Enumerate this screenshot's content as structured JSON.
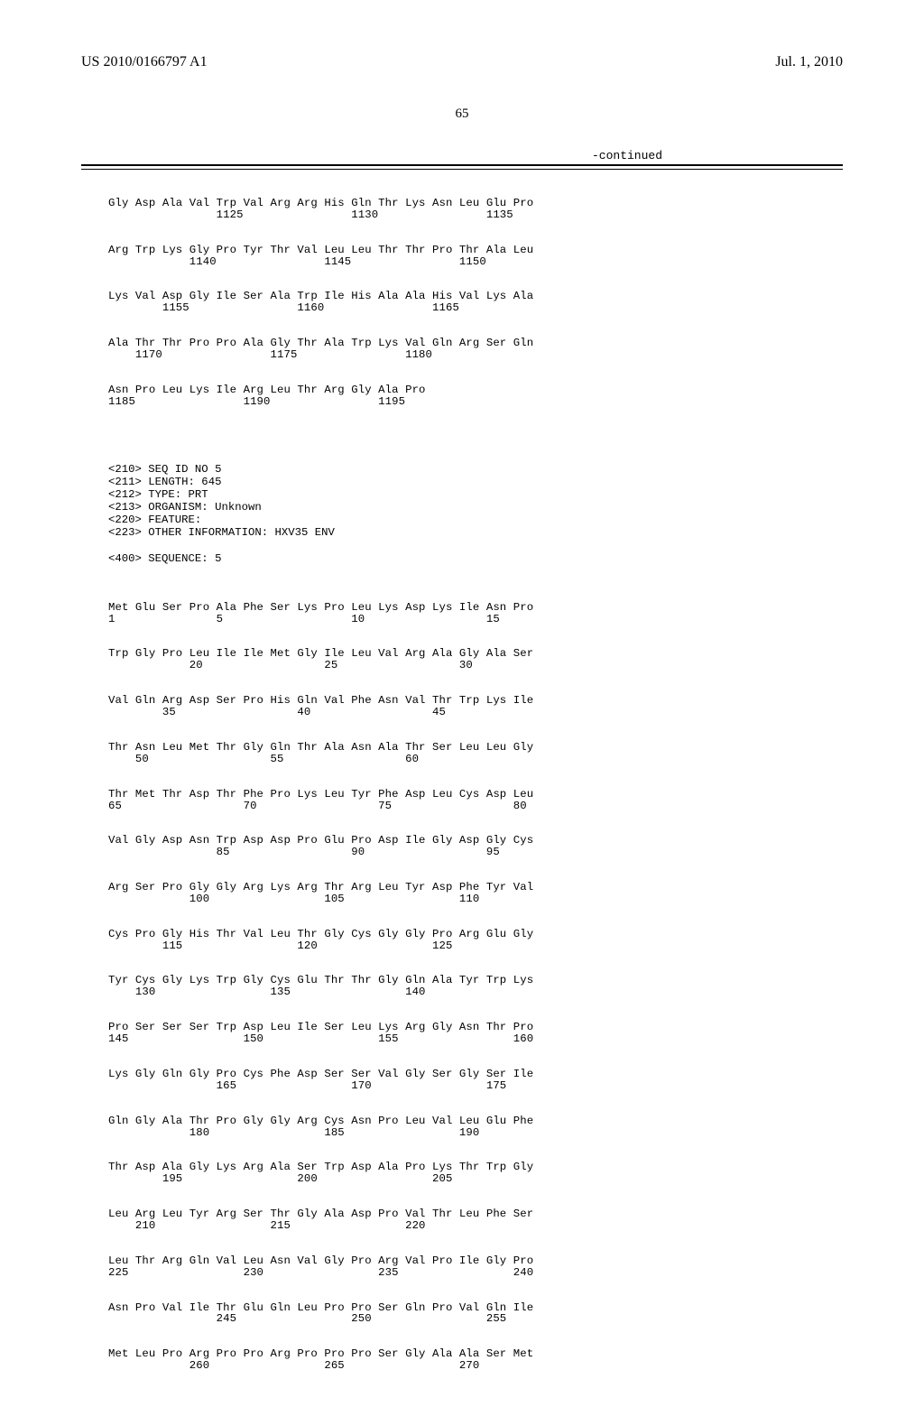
{
  "header": {
    "pub_number": "US 2010/0166797 A1",
    "pub_date": "Jul. 1, 2010"
  },
  "page_number": "65",
  "continued_label": "-continued",
  "seq_top": [
    {
      "aa": "Gly Asp Ala Val Trp Val Arg Arg His Gln Thr Lys Asn Leu Glu Pro",
      "nums": "                1125                1130                1135"
    },
    {
      "aa": "Arg Trp Lys Gly Pro Tyr Thr Val Leu Leu Thr Thr Pro Thr Ala Leu",
      "nums": "            1140                1145                1150"
    },
    {
      "aa": "Lys Val Asp Gly Ile Ser Ala Trp Ile His Ala Ala His Val Lys Ala",
      "nums": "        1155                1160                1165"
    },
    {
      "aa": "Ala Thr Thr Pro Pro Ala Gly Thr Ala Trp Lys Val Gln Arg Ser Gln",
      "nums": "    1170                1175                1180"
    },
    {
      "aa": "Asn Pro Leu Lys Ile Arg Leu Thr Arg Gly Ala Pro",
      "nums": "1185                1190                1195"
    }
  ],
  "meta": {
    "l1": "<210> SEQ ID NO 5",
    "l2": "<211> LENGTH: 645",
    "l3": "<212> TYPE: PRT",
    "l4": "<213> ORGANISM: Unknown",
    "l5": "<220> FEATURE:",
    "l6": "<223> OTHER INFORMATION: HXV35 ENV",
    "l7": "<400> SEQUENCE: 5"
  },
  "seq_main": [
    {
      "aa": "Met Glu Ser Pro Ala Phe Ser Lys Pro Leu Lys Asp Lys Ile Asn Pro",
      "nums": "1               5                   10                  15"
    },
    {
      "aa": "Trp Gly Pro Leu Ile Ile Met Gly Ile Leu Val Arg Ala Gly Ala Ser",
      "nums": "            20                  25                  30"
    },
    {
      "aa": "Val Gln Arg Asp Ser Pro His Gln Val Phe Asn Val Thr Trp Lys Ile",
      "nums": "        35                  40                  45"
    },
    {
      "aa": "Thr Asn Leu Met Thr Gly Gln Thr Ala Asn Ala Thr Ser Leu Leu Gly",
      "nums": "    50                  55                  60"
    },
    {
      "aa": "Thr Met Thr Asp Thr Phe Pro Lys Leu Tyr Phe Asp Leu Cys Asp Leu",
      "nums": "65                  70                  75                  80"
    },
    {
      "aa": "Val Gly Asp Asn Trp Asp Asp Pro Glu Pro Asp Ile Gly Asp Gly Cys",
      "nums": "                85                  90                  95"
    },
    {
      "aa": "Arg Ser Pro Gly Gly Arg Lys Arg Thr Arg Leu Tyr Asp Phe Tyr Val",
      "nums": "            100                 105                 110"
    },
    {
      "aa": "Cys Pro Gly His Thr Val Leu Thr Gly Cys Gly Gly Pro Arg Glu Gly",
      "nums": "        115                 120                 125"
    },
    {
      "aa": "Tyr Cys Gly Lys Trp Gly Cys Glu Thr Thr Gly Gln Ala Tyr Trp Lys",
      "nums": "    130                 135                 140"
    },
    {
      "aa": "Pro Ser Ser Ser Trp Asp Leu Ile Ser Leu Lys Arg Gly Asn Thr Pro",
      "nums": "145                 150                 155                 160"
    },
    {
      "aa": "Lys Gly Gln Gly Pro Cys Phe Asp Ser Ser Val Gly Ser Gly Ser Ile",
      "nums": "                165                 170                 175"
    },
    {
      "aa": "Gln Gly Ala Thr Pro Gly Gly Arg Cys Asn Pro Leu Val Leu Glu Phe",
      "nums": "            180                 185                 190"
    },
    {
      "aa": "Thr Asp Ala Gly Lys Arg Ala Ser Trp Asp Ala Pro Lys Thr Trp Gly",
      "nums": "        195                 200                 205"
    },
    {
      "aa": "Leu Arg Leu Tyr Arg Ser Thr Gly Ala Asp Pro Val Thr Leu Phe Ser",
      "nums": "    210                 215                 220"
    },
    {
      "aa": "Leu Thr Arg Gln Val Leu Asn Val Gly Pro Arg Val Pro Ile Gly Pro",
      "nums": "225                 230                 235                 240"
    },
    {
      "aa": "Asn Pro Val Ile Thr Glu Gln Leu Pro Pro Ser Gln Pro Val Gln Ile",
      "nums": "                245                 250                 255"
    },
    {
      "aa": "Met Leu Pro Arg Pro Pro Arg Pro Pro Pro Ser Gly Ala Ala Ser Met",
      "nums": "            260                 265                 270"
    }
  ],
  "style": {
    "font_mono": "Courier New",
    "font_serif": "Times New Roman",
    "bg": "#ffffff",
    "text": "#000000",
    "seq_fontsize": 12.3,
    "header_fontsize": 16
  }
}
